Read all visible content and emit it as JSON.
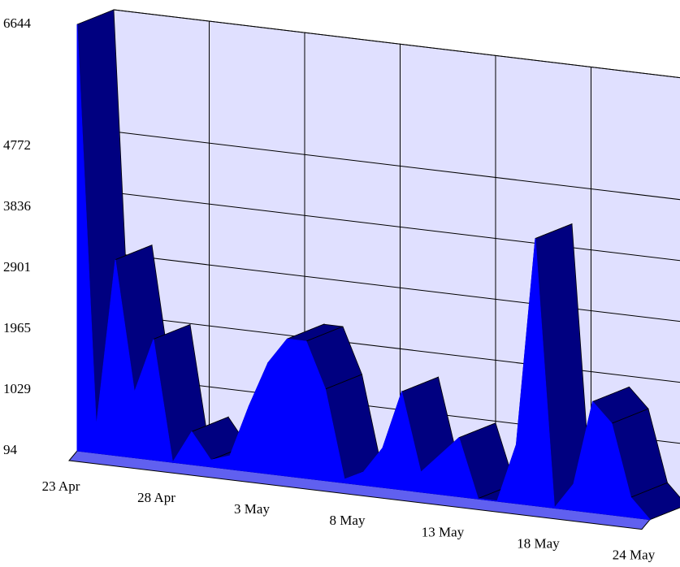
{
  "chart_data": {
    "type": "area3d",
    "categories": [
      "23 Apr",
      null,
      null,
      null,
      null,
      "28 Apr",
      null,
      null,
      null,
      null,
      "3 May",
      null,
      null,
      null,
      null,
      "8 May",
      null,
      null,
      null,
      null,
      "13 May",
      null,
      null,
      null,
      null,
      "18 May",
      null,
      null,
      null,
      null,
      "24 May"
    ],
    "values": [
      6644,
      500,
      3100,
      1100,
      1950,
      94,
      600,
      200,
      300,
      1100,
      1800,
      2200,
      2200,
      1500,
      150,
      300,
      700,
      1600,
      400,
      700,
      1000,
      100,
      100,
      1000,
      4200,
      100,
      500,
      1800,
      1500,
      400,
      94
    ],
    "color": "#0000ff",
    "depth_color": "#000080",
    "wall_color": "#e0e0ff",
    "ylim": [
      94,
      6644
    ],
    "yticks": [
      94,
      1029,
      1965,
      2901,
      3836,
      4772,
      6644
    ],
    "grid": true
  }
}
